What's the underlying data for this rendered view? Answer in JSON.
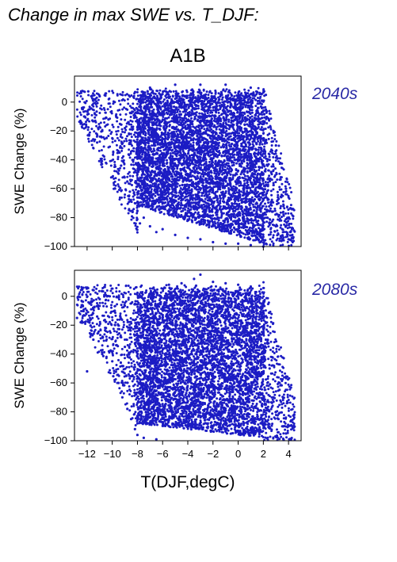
{
  "title": "Change in max SWE vs. T_DJF:",
  "scenario": "A1B",
  "xlabel": "T(DJF,degC)",
  "colors": {
    "points": "#1c1cc4",
    "label": "#2a2aa6",
    "axes": "#000000"
  },
  "chart_data": [
    {
      "type": "scatter",
      "panel_label": "2040s",
      "xlabel": "",
      "ylabel": "SWE Change (%)",
      "xlim": [
        -13,
        5
      ],
      "ylim": [
        -100,
        18
      ],
      "xticks": [
        -12,
        -10,
        -8,
        -6,
        -4,
        -2,
        0,
        2,
        4
      ],
      "yticks": [
        0,
        -20,
        -40,
        -60,
        -80,
        -100
      ],
      "xtick_labels_shown": false,
      "point_color": "#1c1cc4",
      "density": {
        "dense_x_range": [
          -8,
          2
        ],
        "dense_y_range": [
          -98,
          10
        ],
        "sparse_left_x_range": [
          -12.8,
          -8
        ],
        "sparse_right_x_range": [
          2,
          4.5
        ]
      },
      "points": [
        [
          -12.5,
          -15
        ],
        [
          -12.2,
          -10
        ],
        [
          -11.8,
          -5
        ],
        [
          -11.5,
          2
        ],
        [
          -11.2,
          -28
        ],
        [
          -11,
          4
        ],
        [
          -10.8,
          -20
        ],
        [
          -10.5,
          6
        ],
        [
          -10.3,
          -12
        ],
        [
          -10,
          -25
        ],
        [
          -9.8,
          0
        ],
        [
          -9.5,
          -35
        ],
        [
          -9.3,
          -44
        ],
        [
          -9,
          -18
        ],
        [
          -8.8,
          -55
        ],
        [
          -8.6,
          -62
        ],
        [
          -8.4,
          -40
        ],
        [
          -8.2,
          -70
        ],
        [
          -8,
          -66
        ],
        [
          -7.8,
          -84
        ],
        [
          -7.5,
          -80
        ],
        [
          -7,
          -86
        ],
        [
          -6.5,
          -90
        ],
        [
          -6,
          -88
        ],
        [
          -5,
          -92
        ],
        [
          -4,
          -94
        ],
        [
          -3,
          -95
        ],
        [
          -2,
          -97
        ],
        [
          -1,
          -98
        ],
        [
          0,
          -98
        ],
        [
          1,
          -99
        ],
        [
          2,
          -100
        ],
        [
          2.3,
          -80
        ],
        [
          2.6,
          -90
        ],
        [
          3,
          -86
        ],
        [
          3.2,
          -70
        ],
        [
          3.5,
          -88
        ],
        [
          3.8,
          -60
        ],
        [
          4,
          -95
        ],
        [
          4.3,
          -92
        ],
        [
          2.5,
          -40
        ],
        [
          2.8,
          -20
        ],
        [
          3,
          -30
        ],
        [
          2.2,
          5
        ],
        [
          -7,
          10
        ],
        [
          -5,
          12
        ],
        [
          -3,
          12
        ],
        [
          -1,
          12
        ],
        [
          1,
          10
        ]
      ]
    },
    {
      "type": "scatter",
      "panel_label": "2080s",
      "xlabel": "T(DJF,degC)",
      "ylabel": "SWE Change (%)",
      "xlim": [
        -13,
        5
      ],
      "ylim": [
        -100,
        18
      ],
      "xticks": [
        -12,
        -10,
        -8,
        -6,
        -4,
        -2,
        0,
        2,
        4
      ],
      "xtick_labels": [
        "−12",
        "−10",
        "−8",
        "−6",
        "−4",
        "−2",
        "0",
        "2",
        "4"
      ],
      "yticks": [
        0,
        -20,
        -40,
        -60,
        -80,
        -100
      ],
      "point_color": "#1c1cc4",
      "density": {
        "dense_x_range": [
          -8,
          2
        ],
        "dense_y_range": [
          -98,
          8
        ],
        "sparse_left_x_range": [
          -12.8,
          -8
        ],
        "sparse_right_x_range": [
          2,
          4.5
        ]
      },
      "points": [
        [
          -12.8,
          -15
        ],
        [
          -12.5,
          -18
        ],
        [
          -12,
          -52
        ],
        [
          -11.8,
          -5
        ],
        [
          -11.5,
          -30
        ],
        [
          -11.2,
          -14
        ],
        [
          -11,
          -2
        ],
        [
          -10.8,
          -40
        ],
        [
          -10.5,
          -22
        ],
        [
          -10.2,
          0
        ],
        [
          -10,
          -45
        ],
        [
          -9.8,
          -10
        ],
        [
          -9.5,
          -60
        ],
        [
          -9.2,
          -70
        ],
        [
          -9,
          -35
        ],
        [
          -8.8,
          -78
        ],
        [
          -8.5,
          -85
        ],
        [
          -8.2,
          -92
        ],
        [
          -8,
          -96
        ],
        [
          -7.5,
          -98
        ],
        [
          -6.5,
          -99
        ],
        [
          -5.5,
          8
        ],
        [
          -4.5,
          9
        ],
        [
          -3.5,
          12
        ],
        [
          -3,
          15
        ],
        [
          -2,
          10
        ],
        [
          -1,
          9
        ],
        [
          0,
          8
        ],
        [
          1,
          6
        ],
        [
          2.2,
          -30
        ],
        [
          2.5,
          -50
        ],
        [
          2.8,
          -70
        ],
        [
          3,
          -80
        ],
        [
          3.2,
          -85
        ],
        [
          3.5,
          -90
        ],
        [
          3.8,
          -95
        ],
        [
          4.2,
          -99
        ]
      ]
    }
  ]
}
